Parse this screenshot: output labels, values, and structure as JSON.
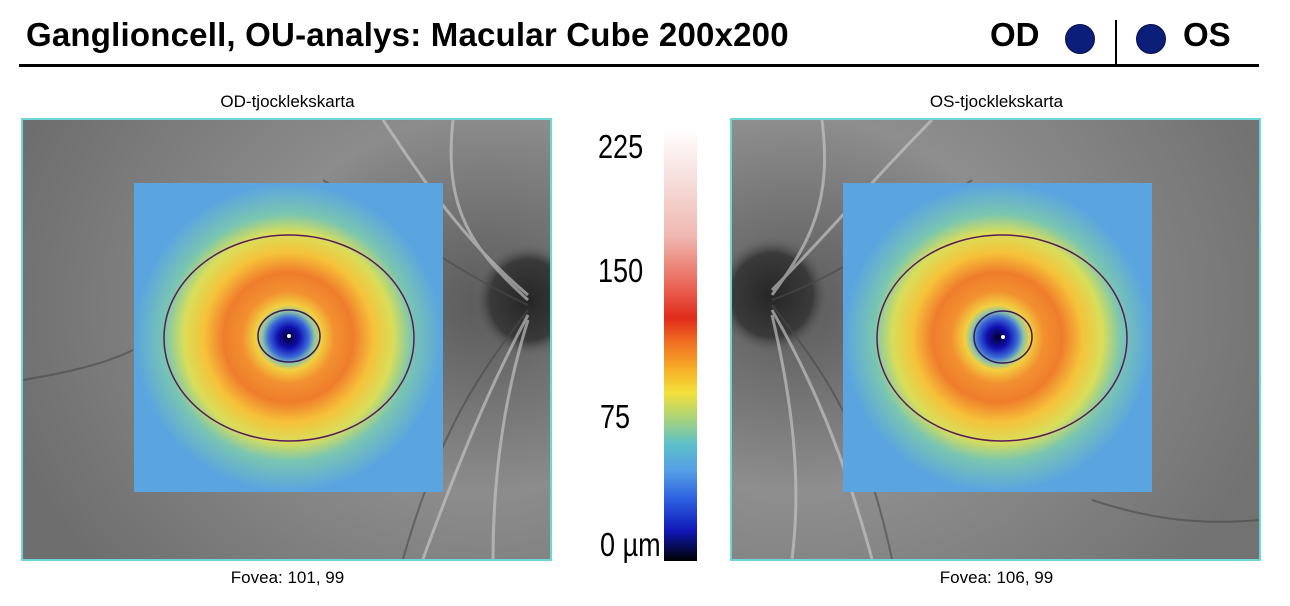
{
  "header": {
    "title": "Ganglioncell, OU-analys: Macular Cube 200x200",
    "od_label": "OD",
    "os_label": "OS",
    "eye_color": "#0a1e7a"
  },
  "maps": [
    {
      "caption": "OD-tjocklekskarta",
      "fovea": "Fovea: 101, 99",
      "eye": "OD"
    },
    {
      "caption": "OS-tjocklekskarta",
      "fovea": "Fovea: 106, 99",
      "eye": "OS"
    }
  ],
  "scale": {
    "labels": [
      "225",
      "150",
      "75",
      "0 µm"
    ],
    "colors": [
      "#ffffff",
      "#e02a1a",
      "#f4e03a",
      "#5cc0c8",
      "#1018b8",
      "#000000"
    ]
  }
}
